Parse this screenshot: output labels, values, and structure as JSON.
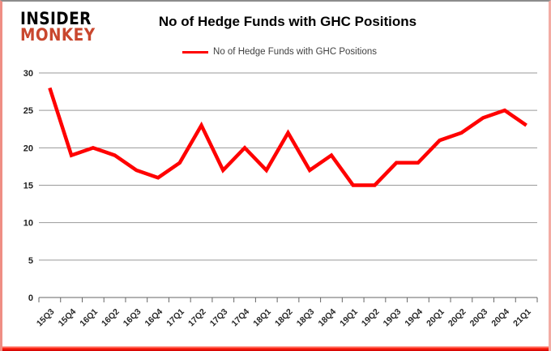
{
  "logo": {
    "line1": "INSIDER",
    "line2": "MONKEY",
    "color": "#c9472e"
  },
  "header": {
    "title": "No of Hedge Funds with GHC Positions"
  },
  "legend": {
    "label": "No of Hedge Funds with GHC Positions",
    "line_color": "#ff0000"
  },
  "chart_data": {
    "type": "line",
    "title": "No of Hedge Funds with GHC Positions",
    "categories": [
      "15Q3",
      "15Q4",
      "16Q1",
      "16Q2",
      "16Q3",
      "16Q4",
      "17Q1",
      "17Q2",
      "17Q3",
      "17Q4",
      "18Q1",
      "18Q2",
      "18Q3",
      "18Q4",
      "19Q1",
      "19Q2",
      "19Q3",
      "19Q4",
      "20Q1",
      "20Q2",
      "20Q3",
      "20Q4",
      "21Q1"
    ],
    "series": [
      {
        "name": "No of Hedge Funds with GHC Positions",
        "color": "#ff0000",
        "values": [
          28,
          19,
          20,
          19,
          17,
          16,
          18,
          23,
          17,
          20,
          17,
          22,
          17,
          19,
          15,
          15,
          18,
          18,
          21,
          22,
          24,
          25,
          23
        ]
      }
    ],
    "xlabel": "",
    "ylabel": "",
    "ylim": [
      0,
      30
    ],
    "yticks": [
      0,
      5,
      10,
      15,
      20,
      25,
      30
    ],
    "grid": true,
    "legend_position": "top-center",
    "gridline_color": "#999999",
    "axis_color": "#666666"
  }
}
